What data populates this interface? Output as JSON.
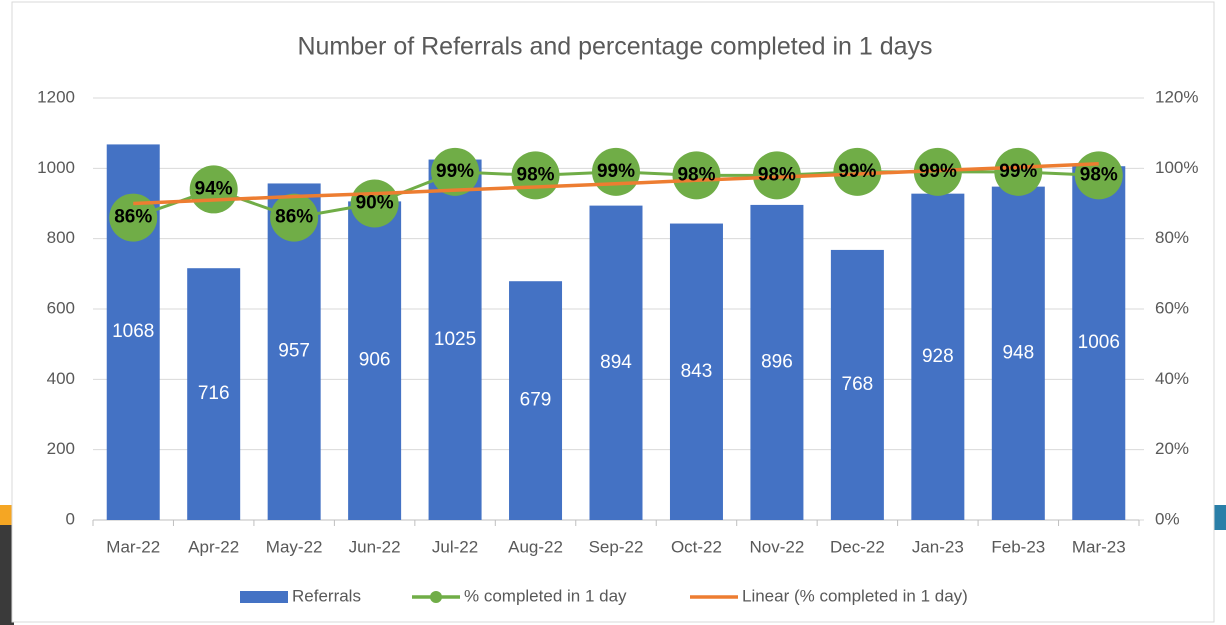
{
  "chart_data": {
    "type": "bar",
    "title": "Number of Referrals and percentage completed in 1 days",
    "categories": [
      "Mar-22",
      "Apr-22",
      "May-22",
      "Jun-22",
      "Jul-22",
      "Aug-22",
      "Sep-22",
      "Oct-22",
      "Nov-22",
      "Dec-22",
      "Jan-23",
      "Feb-23",
      "Mar-23"
    ],
    "series": [
      {
        "name": "Referrals",
        "type": "bar",
        "color": "#4472c4",
        "values": [
          1068,
          716,
          957,
          906,
          1025,
          679,
          894,
          843,
          896,
          768,
          928,
          948,
          1006
        ]
      },
      {
        "name": "% completed in 1 day",
        "type": "line",
        "axis": "y2",
        "color": "#70ad47",
        "values": [
          86,
          94,
          86,
          90,
          99,
          98,
          99,
          98,
          98,
          99,
          99,
          99,
          98
        ],
        "value_labels": [
          "86%",
          "94%",
          "86%",
          "90%",
          "99%",
          "98%",
          "99%",
          "98%",
          "98%",
          "99%",
          "99%",
          "99%",
          "98%"
        ]
      },
      {
        "name": "Linear (% completed in 1 day)",
        "type": "trend",
        "axis": "y2",
        "color": "#ed7d31",
        "values": [
          90,
          91,
          92,
          92.8,
          93.8,
          94.7,
          95.6,
          96.6,
          97.5,
          98.4,
          99.4,
          100.3,
          101.3
        ]
      }
    ],
    "ylim": [
      0,
      1200
    ],
    "yticks": [
      0,
      200,
      400,
      600,
      800,
      1000,
      1200
    ],
    "y2lim": [
      0,
      120
    ],
    "y2ticks": [
      {
        "value": 0,
        "label": "0%"
      },
      {
        "value": 20,
        "label": "20%"
      },
      {
        "value": 40,
        "label": "40%"
      },
      {
        "value": 60,
        "label": "60%"
      },
      {
        "value": 80,
        "label": "80%"
      },
      {
        "value": 100,
        "label": "100%"
      },
      {
        "value": 120,
        "label": "120%"
      }
    ],
    "grid": true,
    "legend": "bottom"
  }
}
